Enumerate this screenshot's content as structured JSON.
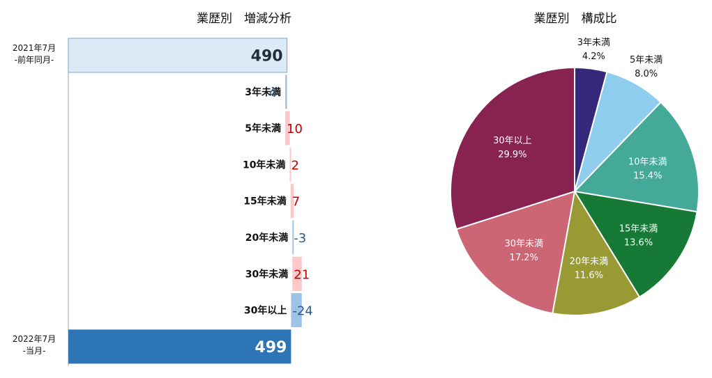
{
  "waterfall": {
    "title": "業歴別　増減分析",
    "start": {
      "period": "2021年7月",
      "sub": "-前年同月-",
      "value": 490
    },
    "end": {
      "period": "2022年7月",
      "sub": "-当月-",
      "value": 499
    },
    "colors": {
      "start_fill": "#dce9f6",
      "start_stroke": "#7ea6cf",
      "end_fill": "#2e75b6",
      "neg_fill": "#9dc3e6",
      "pos_fill": "#ffc7c7",
      "neg_text": "#2f5a85",
      "pos_text": "#c00000",
      "total_text_start": "#1f2d3d",
      "total_text_end": "#ffffff"
    }
  },
  "pie": {
    "title": "業歴別　構成比"
  },
  "chart_data": [
    {
      "type": "bar",
      "subtype": "waterfall",
      "title": "業歴別　増減分析",
      "categories": [
        "3年未満",
        "5年未満",
        "10年未満",
        "15年未満",
        "20年未満",
        "30年未満",
        "30年以上"
      ],
      "values": [
        -4,
        10,
        2,
        7,
        -3,
        21,
        -24
      ],
      "start": {
        "label": "2021年7月 -前年同月-",
        "value": 490
      },
      "end": {
        "label": "2022年7月 -当月-",
        "value": 499
      },
      "orientation": "horizontal"
    },
    {
      "type": "pie",
      "title": "業歴別　構成比",
      "slices": [
        {
          "label": "3年未満",
          "value": 4.2,
          "text": "4.2%",
          "color": "#33287a"
        },
        {
          "label": "5年未満",
          "value": 8.0,
          "text": "8.0%",
          "color": "#8fcdee"
        },
        {
          "label": "10年未満",
          "value": 15.4,
          "text": "15.4%",
          "color": "#45a99a"
        },
        {
          "label": "15年未満",
          "value": 13.6,
          "text": "13.6%",
          "color": "#167a36"
        },
        {
          "label": "20年未満",
          "value": 11.6,
          "text": "11.6%",
          "color": "#999a34"
        },
        {
          "label": "30年未満",
          "value": 17.2,
          "text": "17.2%",
          "color": "#cc6675"
        },
        {
          "label": "30年以上",
          "value": 29.9,
          "text": "29.9%",
          "color": "#882251"
        }
      ]
    }
  ]
}
